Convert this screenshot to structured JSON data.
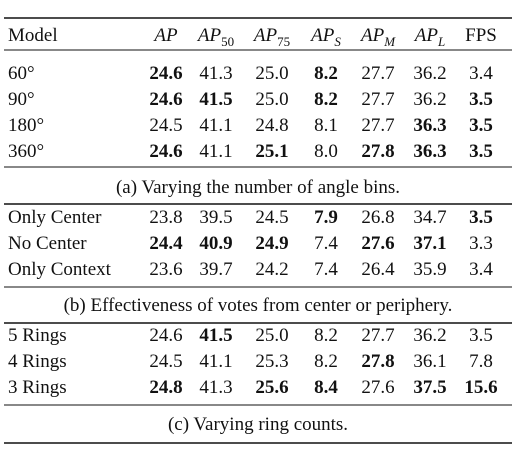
{
  "table": {
    "header": [
      {
        "text": "Model"
      },
      {
        "text": "AP"
      },
      {
        "text": "AP",
        "sub": "50"
      },
      {
        "text": "AP",
        "sub": "75"
      },
      {
        "text": "AP",
        "sub": "S"
      },
      {
        "text": "AP",
        "sub": "M"
      },
      {
        "text": "AP",
        "sub": "L"
      },
      {
        "text": "FPS"
      }
    ],
    "sections": [
      {
        "rows": [
          [
            "60°",
            {
              "text": "24.6",
              "bold": true
            },
            "41.3",
            "25.0",
            {
              "text": "8.2",
              "bold": true
            },
            "27.7",
            "36.2",
            "3.4"
          ],
          [
            "90°",
            {
              "text": "24.6",
              "bold": true
            },
            {
              "text": "41.5",
              "bold": true
            },
            "25.0",
            {
              "text": "8.2",
              "bold": true
            },
            "27.7",
            "36.2",
            {
              "text": "3.5",
              "bold": true
            }
          ],
          [
            "180°",
            "24.5",
            "41.1",
            "24.8",
            "8.1",
            "27.7",
            {
              "text": "36.3",
              "bold": true
            },
            {
              "text": "3.5",
              "bold": true
            }
          ],
          [
            "360°",
            {
              "text": "24.6",
              "bold": true
            },
            "41.1",
            {
              "text": "25.1",
              "bold": true
            },
            "8.0",
            {
              "text": "27.8",
              "bold": true
            },
            {
              "text": "36.3",
              "bold": true
            },
            {
              "text": "3.5",
              "bold": true
            }
          ]
        ],
        "caption": "(a) Varying the number of angle bins."
      },
      {
        "rows": [
          [
            "Only Center",
            "23.8",
            "39.5",
            "24.5",
            {
              "text": "7.9",
              "bold": true
            },
            "26.8",
            "34.7",
            {
              "text": "3.5",
              "bold": true
            }
          ],
          [
            "No Center",
            {
              "text": "24.4",
              "bold": true
            },
            {
              "text": "40.9",
              "bold": true
            },
            {
              "text": "24.9",
              "bold": true
            },
            "7.4",
            {
              "text": "27.6",
              "bold": true
            },
            {
              "text": "37.1",
              "bold": true
            },
            "3.3"
          ],
          [
            "Only Context",
            "23.6",
            "39.7",
            "24.2",
            "7.4",
            "26.4",
            "35.9",
            "3.4"
          ]
        ],
        "caption": "(b) Effectiveness of votes from center or periphery."
      },
      {
        "rows": [
          [
            "5 Rings",
            "24.6",
            {
              "text": "41.5",
              "bold": true
            },
            "25.0",
            "8.2",
            "27.7",
            "36.2",
            "3.5"
          ],
          [
            "4 Rings",
            "24.5",
            "41.1",
            "25.3",
            "8.2",
            {
              "text": "27.8",
              "bold": true
            },
            "36.1",
            "7.8"
          ],
          [
            "3 Rings",
            {
              "text": "24.8",
              "bold": true
            },
            "41.3",
            {
              "text": "25.6",
              "bold": true
            },
            {
              "text": "8.4",
              "bold": true
            },
            "27.6",
            {
              "text": "37.5",
              "bold": true
            },
            {
              "text": "15.6",
              "bold": true
            }
          ]
        ],
        "caption": "(c) Varying ring counts."
      }
    ]
  }
}
